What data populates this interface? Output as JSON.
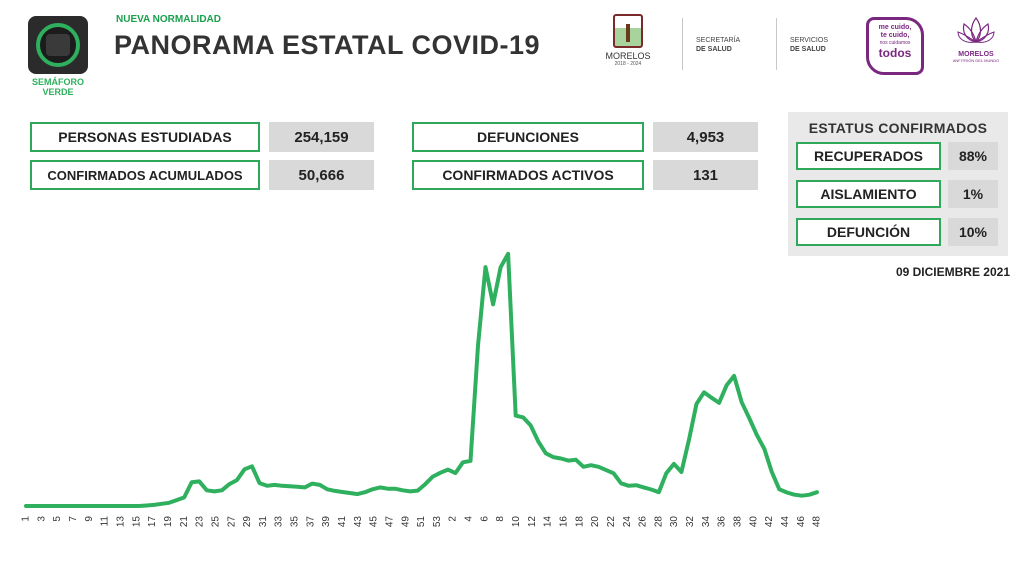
{
  "header": {
    "semaforo_label_line1": "SEMÁFORO",
    "semaforo_label_line2": "VERDE",
    "subtitle": "NUEVA NORMALIDAD",
    "title": "PANORAMA ESTATAL COVID-19",
    "morelos_name": "MORELOS",
    "morelos_years": "2018 - 2024",
    "agency1_line1": "SECRETARÍA",
    "agency1_line2": "DE SALUD",
    "agency2_line1": "SERVICIOS",
    "agency2_line2": "DE SALUD",
    "campaign_line1": "me cuido,",
    "campaign_line2": "te cuido,",
    "campaign_line3": "nos cuidamos",
    "campaign_line4": "todos",
    "lotus_line1": "MORELOS",
    "lotus_line2": "ANFITRIÓN DEL MUNDO"
  },
  "stats": {
    "studied_label": "PERSONAS ESTUDIADAS",
    "studied_value": "254,159",
    "confirmed_label": "CONFIRMADOS ACUMULADOS",
    "confirmed_value": "50,666",
    "deaths_label": "DEFUNCIONES",
    "deaths_value": "4,953",
    "active_label": "CONFIRMADOS ACTIVOS",
    "active_value": "131"
  },
  "status": {
    "title": "ESTATUS CONFIRMADOS",
    "recovered_label": "RECUPERADOS",
    "recovered_value": "88%",
    "isolation_label": "AISLAMIENTO",
    "isolation_value": "1%",
    "death_label": "DEFUNCIÓN",
    "death_value": "10%"
  },
  "date": "09 DICIEMBRE 2021",
  "colors": {
    "accent": "#2fa85a",
    "line": "#2fb05e",
    "purple": "#7a2780"
  },
  "chart_data": {
    "type": "line",
    "title": "",
    "xlabel": "",
    "ylabel": "",
    "x_tick_labels": [
      "1",
      "3",
      "5",
      "7",
      "9",
      "11",
      "13",
      "15",
      "17",
      "19",
      "21",
      "23",
      "25",
      "27",
      "29",
      "31",
      "33",
      "35",
      "37",
      "39",
      "41",
      "43",
      "45",
      "47",
      "49",
      "51",
      "53",
      "2",
      "4",
      "6",
      "8",
      "10",
      "12",
      "14",
      "16",
      "18",
      "20",
      "22",
      "24",
      "26",
      "28",
      "30",
      "32",
      "34",
      "36",
      "38",
      "40",
      "42",
      "44",
      "46",
      "48"
    ],
    "ylim": [
      0,
      100
    ],
    "series": [
      {
        "values": [
          0,
          0,
          0,
          0,
          0,
          0,
          0,
          0,
          0,
          0,
          0,
          0,
          0,
          0,
          0,
          0,
          0.2,
          0.4,
          0.8,
          1.2,
          2.2,
          3.2,
          8.8,
          9.1,
          5.8,
          5.4,
          5.8,
          8.1,
          9.6,
          13.6,
          14.7,
          8.5,
          7.5,
          7.8,
          7.5,
          7.3,
          7.1,
          6.9,
          8.3,
          7.8,
          6.2,
          5.6,
          5.2,
          4.8,
          4.4,
          5.1,
          6.2,
          6.9,
          6.4,
          6.4,
          5.8,
          5.4,
          5.7,
          8.1,
          10.9,
          12.3,
          13.5,
          12.2,
          16.2,
          16.7,
          59.4,
          88.5,
          74.7,
          88.4,
          93.4,
          33.5,
          32.8,
          29.8,
          23.9,
          19.5,
          18.1,
          17.6,
          16.8,
          17.1,
          14.5,
          15.1,
          14.5,
          13.3,
          12.1,
          8.4,
          7.5,
          7.7,
          6.9,
          6.1,
          5.1,
          12.1,
          15.6,
          12.6,
          24.4,
          37.8,
          42.1,
          40.1,
          38.2,
          44.7,
          48.2,
          38.4,
          32.6,
          26.4,
          21.2,
          12.6,
          6.2,
          5.0,
          4.2,
          3.8,
          4.2,
          5.1
        ]
      }
    ]
  }
}
